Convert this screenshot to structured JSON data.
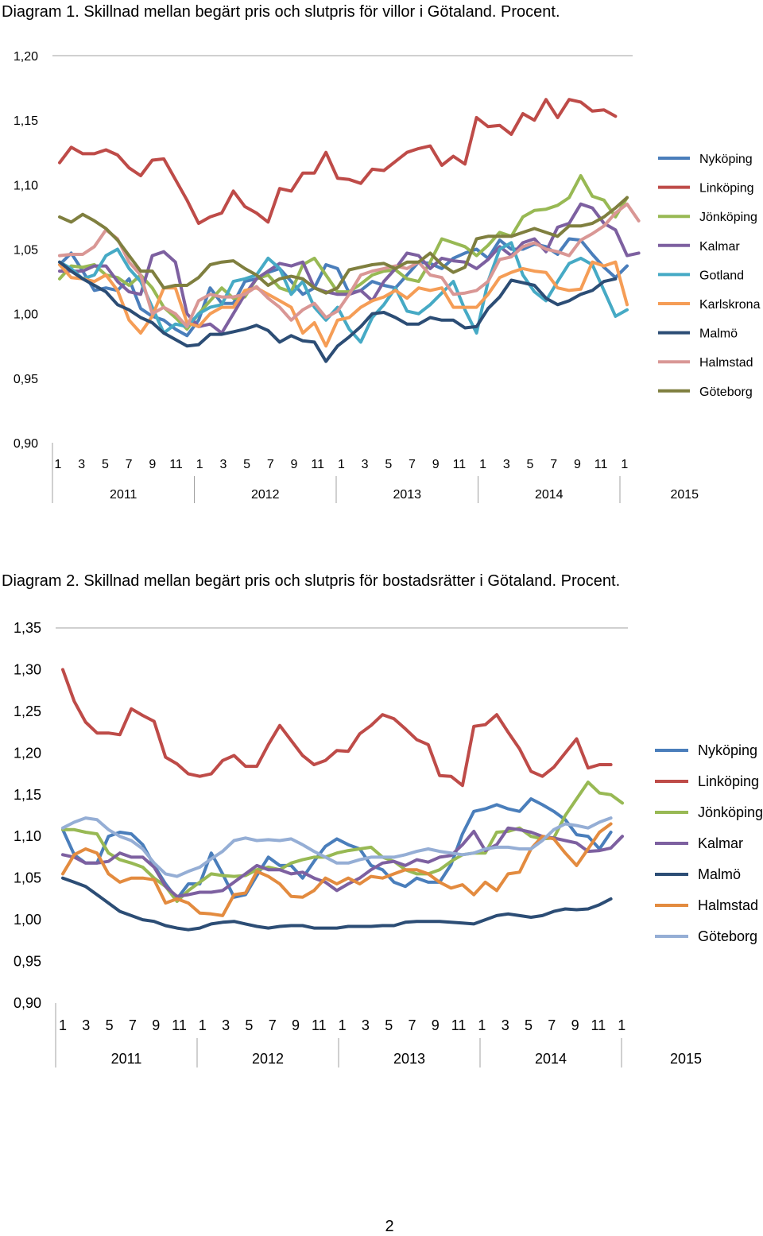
{
  "page_number": "2",
  "chart_data": [
    {
      "type": "line",
      "title": "Diagram 1. Skillnad mellan begärt pris och slutpris för villor i Götaland. Procent.",
      "ylim": [
        0.9,
        1.2
      ],
      "yticks": [
        "0,90",
        "0,95",
        "1,00",
        "1,05",
        "1,10",
        "1,15",
        "1,20"
      ],
      "ytick_values": [
        0.9,
        0.95,
        1.0,
        1.05,
        1.1,
        1.15,
        1.2
      ],
      "xlabels_month": [
        "1",
        "3",
        "5",
        "7",
        "9",
        "11",
        "1",
        "3",
        "5",
        "7",
        "9",
        "11",
        "1",
        "3",
        "5",
        "7",
        "9",
        "11",
        "1",
        "3",
        "5",
        "7",
        "9",
        "11",
        "1"
      ],
      "year_labels": [
        "2011",
        "2012",
        "2013",
        "2014",
        "2015"
      ],
      "grid": "top-only",
      "legend_position": "right",
      "series": [
        {
          "name": "Nyköping",
          "color": "#4a7ebb",
          "values": [
            1.038,
            1.047,
            1.033,
            1.018,
            1.02,
            1.018,
            1.027,
            1.004,
            0.998,
            0.995,
            0.988,
            0.983,
            0.995,
            1.02,
            1.008,
            1.008,
            1.025,
            1.027,
            1.032,
            1.035,
            1.025,
            1.015,
            1.02,
            1.038,
            1.035,
            1.016,
            1.018,
            1.025,
            1.022,
            1.02,
            1.03,
            1.04,
            1.039,
            1.035,
            1.043,
            1.047,
            1.05,
            1.043,
            1.057,
            1.05,
            1.05,
            1.054,
            1.052,
            1.046,
            1.058,
            1.057,
            1.046,
            1.036,
            1.028,
            1.037
          ]
        },
        {
          "name": "Linköping",
          "color": "#be4b48",
          "values": [
            1.117,
            1.129,
            1.124,
            1.124,
            1.127,
            1.123,
            1.113,
            1.107,
            1.119,
            1.12,
            1.104,
            1.088,
            1.07,
            1.075,
            1.078,
            1.095,
            1.083,
            1.078,
            1.071,
            1.097,
            1.095,
            1.109,
            1.109,
            1.125,
            1.105,
            1.104,
            1.101,
            1.112,
            1.111,
            1.118,
            1.125,
            1.128,
            1.13,
            1.115,
            1.122,
            1.116,
            1.152,
            1.145,
            1.146,
            1.139,
            1.155,
            1.15,
            1.166,
            1.152,
            1.166,
            1.164,
            1.157,
            1.158,
            1.153
          ]
        },
        {
          "name": "Jönköping",
          "color": "#98b954",
          "values": [
            1.027,
            1.037,
            1.036,
            1.038,
            1.03,
            1.028,
            1.022,
            1.03,
            1.02,
            1.005,
            0.997,
            0.988,
            1.0,
            1.01,
            1.02,
            1.012,
            1.013,
            1.027,
            1.03,
            1.02,
            1.017,
            1.038,
            1.043,
            1.03,
            1.017,
            1.017,
            1.023,
            1.03,
            1.033,
            1.034,
            1.027,
            1.025,
            1.04,
            1.058,
            1.055,
            1.052,
            1.045,
            1.053,
            1.063,
            1.06,
            1.075,
            1.08,
            1.081,
            1.084,
            1.09,
            1.107,
            1.091,
            1.088,
            1.075,
            1.09
          ]
        },
        {
          "name": "Kalmar",
          "color": "#7d60a0",
          "values": [
            1.033,
            1.033,
            1.033,
            1.037,
            1.037,
            1.025,
            1.017,
            1.015,
            1.045,
            1.048,
            1.04,
            1.0,
            0.99,
            0.992,
            0.985,
            1.0,
            1.015,
            1.027,
            1.033,
            1.039,
            1.037,
            1.04,
            1.02,
            1.017,
            1.015,
            1.015,
            1.018,
            1.01,
            1.025,
            1.035,
            1.047,
            1.045,
            1.035,
            1.043,
            1.041,
            1.04,
            1.035,
            1.042,
            1.052,
            1.045,
            1.055,
            1.058,
            1.048,
            1.067,
            1.07,
            1.085,
            1.082,
            1.07,
            1.065,
            1.045,
            1.047
          ]
        },
        {
          "name": "Gotland",
          "color": "#46aac5",
          "values": [
            1.04,
            1.035,
            1.027,
            1.03,
            1.045,
            1.05,
            1.035,
            1.025,
            1.005,
            0.985,
            0.992,
            0.99,
            1.0,
            1.005,
            1.007,
            1.025,
            1.027,
            1.03,
            1.043,
            1.035,
            1.015,
            1.025,
            1.005,
            0.995,
            1.005,
            0.988,
            0.978,
            0.997,
            1.007,
            1.02,
            1.002,
            1.0,
            1.007,
            1.016,
            1.025,
            1.003,
            0.985,
            1.025,
            1.05,
            1.055,
            1.03,
            1.017,
            1.01,
            1.025,
            1.039,
            1.043,
            1.038,
            1.018,
            0.998,
            1.003
          ]
        },
        {
          "name": "Karlskrona",
          "color": "#f59d56",
          "values": [
            1.038,
            1.028,
            1.027,
            1.025,
            1.03,
            1.018,
            0.995,
            0.985,
            0.998,
            1.02,
            1.02,
            0.993,
            0.99,
            1.0,
            1.005,
            1.005,
            1.018,
            1.02,
            1.015,
            1.01,
            1.005,
            0.985,
            0.993,
            0.975,
            0.995,
            0.997,
            1.005,
            1.01,
            1.013,
            1.018,
            1.012,
            1.02,
            1.018,
            1.02,
            1.005,
            1.005,
            1.005,
            1.015,
            1.028,
            1.032,
            1.035,
            1.033,
            1.032,
            1.02,
            1.018,
            1.019,
            1.04,
            1.037,
            1.04,
            1.007
          ]
        },
        {
          "name": "Malmö",
          "color": "#2c4d75",
          "values": [
            1.04,
            1.033,
            1.027,
            1.022,
            1.017,
            1.007,
            1.003,
            0.997,
            0.993,
            0.985,
            0.98,
            0.975,
            0.976,
            0.984,
            0.984,
            0.986,
            0.988,
            0.991,
            0.987,
            0.978,
            0.983,
            0.979,
            0.978,
            0.963,
            0.975,
            0.982,
            0.99,
            1.0,
            1.001,
            0.997,
            0.992,
            0.992,
            0.997,
            0.995,
            0.995,
            0.989,
            0.99,
            1.004,
            1.013,
            1.026,
            1.024,
            1.022,
            1.012,
            1.007,
            1.01,
            1.015,
            1.018,
            1.025,
            1.027
          ]
        },
        {
          "name": "Halmstad",
          "color": "#d99795",
          "values": [
            1.045,
            1.046,
            1.046,
            1.052,
            1.065,
            1.058,
            1.04,
            1.03,
            1.0,
            1.005,
            1.0,
            0.99,
            1.01,
            1.015,
            1.013,
            1.013,
            1.015,
            1.021,
            1.012,
            1.005,
            0.995,
            1.003,
            1.008,
            0.997,
            1.002,
            1.015,
            1.03,
            1.033,
            1.035,
            1.037,
            1.035,
            1.04,
            1.03,
            1.028,
            1.015,
            1.016,
            1.018,
            1.025,
            1.042,
            1.044,
            1.052,
            1.055,
            1.05,
            1.048,
            1.045,
            1.057,
            1.062,
            1.068,
            1.078,
            1.085,
            1.072
          ]
        },
        {
          "name": "Göteborg",
          "color": "#7f7f3f",
          "values": [
            1.075,
            1.071,
            1.077,
            1.072,
            1.066,
            1.057,
            1.045,
            1.033,
            1.033,
            1.02,
            1.022,
            1.022,
            1.028,
            1.038,
            1.04,
            1.041,
            1.035,
            1.03,
            1.022,
            1.027,
            1.029,
            1.027,
            1.02,
            1.016,
            1.02,
            1.034,
            1.036,
            1.038,
            1.039,
            1.035,
            1.04,
            1.04,
            1.047,
            1.038,
            1.032,
            1.036,
            1.058,
            1.06,
            1.06,
            1.06,
            1.063,
            1.066,
            1.063,
            1.06,
            1.068,
            1.068,
            1.07,
            1.075,
            1.082,
            1.09
          ]
        }
      ]
    },
    {
      "type": "line",
      "title": "Diagram 2. Skillnad mellan begärt pris och slutpris för bostadsrätter i Götaland. Procent.",
      "ylim": [
        0.9,
        1.35
      ],
      "yticks": [
        "0,90",
        "0,95",
        "1,00",
        "1,05",
        "1,10",
        "1,15",
        "1,20",
        "1,25",
        "1,30",
        "1,35"
      ],
      "ytick_values": [
        0.9,
        0.95,
        1.0,
        1.05,
        1.1,
        1.15,
        1.2,
        1.25,
        1.3,
        1.35
      ],
      "xlabels_month": [
        "1",
        "3",
        "5",
        "7",
        "9",
        "11",
        "1",
        "3",
        "5",
        "7",
        "9",
        "11",
        "1",
        "3",
        "5",
        "7",
        "9",
        "11",
        "1",
        "3",
        "5",
        "7",
        "9",
        "11",
        "1"
      ],
      "year_labels": [
        "2011",
        "2012",
        "2013",
        "2014",
        "2015"
      ],
      "grid": "top-only",
      "legend_position": "right",
      "series": [
        {
          "name": "Nyköping",
          "color": "#4a7ebb",
          "values": [
            1.108,
            1.078,
            1.068,
            1.068,
            1.1,
            1.105,
            1.103,
            1.09,
            1.065,
            1.043,
            1.025,
            1.043,
            1.043,
            1.08,
            1.055,
            1.027,
            1.03,
            1.053,
            1.075,
            1.065,
            1.065,
            1.05,
            1.07,
            1.088,
            1.097,
            1.09,
            1.085,
            1.065,
            1.06,
            1.045,
            1.04,
            1.05,
            1.045,
            1.045,
            1.066,
            1.103,
            1.13,
            1.133,
            1.138,
            1.133,
            1.13,
            1.145,
            1.138,
            1.13,
            1.12,
            1.102,
            1.1,
            1.085,
            1.105
          ]
        },
        {
          "name": "Linköping",
          "color": "#be4b48",
          "values": [
            1.3,
            1.262,
            1.237,
            1.224,
            1.224,
            1.222,
            1.253,
            1.245,
            1.238,
            1.195,
            1.187,
            1.175,
            1.172,
            1.175,
            1.191,
            1.197,
            1.184,
            1.184,
            1.21,
            1.233,
            1.215,
            1.197,
            1.186,
            1.191,
            1.203,
            1.202,
            1.223,
            1.233,
            1.246,
            1.241,
            1.229,
            1.216,
            1.21,
            1.173,
            1.172,
            1.161,
            1.232,
            1.234,
            1.246,
            1.225,
            1.205,
            1.178,
            1.172,
            1.183,
            1.2,
            1.217,
            1.182,
            1.186,
            1.186
          ]
        },
        {
          "name": "Jönköping",
          "color": "#98b954",
          "values": [
            1.108,
            1.108,
            1.105,
            1.103,
            1.08,
            1.072,
            1.068,
            1.063,
            1.05,
            1.04,
            1.022,
            1.035,
            1.045,
            1.055,
            1.053,
            1.052,
            1.053,
            1.06,
            1.063,
            1.06,
            1.068,
            1.072,
            1.075,
            1.075,
            1.08,
            1.083,
            1.085,
            1.087,
            1.075,
            1.07,
            1.06,
            1.055,
            1.055,
            1.06,
            1.07,
            1.078,
            1.08,
            1.08,
            1.105,
            1.106,
            1.11,
            1.1,
            1.097,
            1.098,
            1.125,
            1.145,
            1.165,
            1.152,
            1.15,
            1.14
          ]
        },
        {
          "name": "Kalmar",
          "color": "#7d60a0",
          "values": [
            1.078,
            1.075,
            1.068,
            1.068,
            1.07,
            1.08,
            1.075,
            1.075,
            1.063,
            1.04,
            1.028,
            1.03,
            1.033,
            1.033,
            1.035,
            1.045,
            1.055,
            1.065,
            1.06,
            1.06,
            1.055,
            1.057,
            1.05,
            1.045,
            1.035,
            1.043,
            1.05,
            1.06,
            1.068,
            1.07,
            1.065,
            1.072,
            1.069,
            1.075,
            1.077,
            1.09,
            1.106,
            1.083,
            1.09,
            1.11,
            1.108,
            1.105,
            1.1,
            1.098,
            1.095,
            1.092,
            1.082,
            1.083,
            1.086,
            1.1
          ]
        },
        {
          "name": "Malmö",
          "color": "#2c4d75",
          "values": [
            1.05,
            1.045,
            1.04,
            1.03,
            1.02,
            1.01,
            1.005,
            1.0,
            0.998,
            0.993,
            0.99,
            0.988,
            0.99,
            0.995,
            0.997,
            0.998,
            0.995,
            0.992,
            0.99,
            0.992,
            0.993,
            0.993,
            0.99,
            0.99,
            0.99,
            0.992,
            0.992,
            0.992,
            0.993,
            0.993,
            0.997,
            0.998,
            0.998,
            0.998,
            0.997,
            0.996,
            0.995,
            1.0,
            1.005,
            1.007,
            1.005,
            1.003,
            1.005,
            1.01,
            1.013,
            1.012,
            1.013,
            1.018,
            1.025
          ]
        },
        {
          "name": "Halmstad",
          "color": "#e38b3f",
          "values": [
            1.055,
            1.078,
            1.085,
            1.08,
            1.055,
            1.045,
            1.05,
            1.05,
            1.048,
            1.02,
            1.025,
            1.02,
            1.008,
            1.007,
            1.005,
            1.03,
            1.032,
            1.058,
            1.052,
            1.043,
            1.028,
            1.027,
            1.035,
            1.05,
            1.043,
            1.05,
            1.043,
            1.052,
            1.05,
            1.055,
            1.06,
            1.06,
            1.055,
            1.045,
            1.038,
            1.042,
            1.03,
            1.045,
            1.035,
            1.055,
            1.057,
            1.085,
            1.1,
            1.097,
            1.08,
            1.065,
            1.085,
            1.105,
            1.115
          ]
        },
        {
          "name": "Göteborg",
          "color": "#95aed5",
          "values": [
            1.11,
            1.117,
            1.122,
            1.12,
            1.108,
            1.1,
            1.095,
            1.085,
            1.068,
            1.055,
            1.052,
            1.058,
            1.063,
            1.073,
            1.082,
            1.095,
            1.098,
            1.095,
            1.096,
            1.095,
            1.097,
            1.09,
            1.082,
            1.075,
            1.068,
            1.068,
            1.072,
            1.075,
            1.075,
            1.075,
            1.078,
            1.082,
            1.085,
            1.082,
            1.08,
            1.078,
            1.08,
            1.085,
            1.087,
            1.087,
            1.085,
            1.085,
            1.095,
            1.108,
            1.115,
            1.113,
            1.11,
            1.117,
            1.122
          ]
        }
      ]
    }
  ]
}
